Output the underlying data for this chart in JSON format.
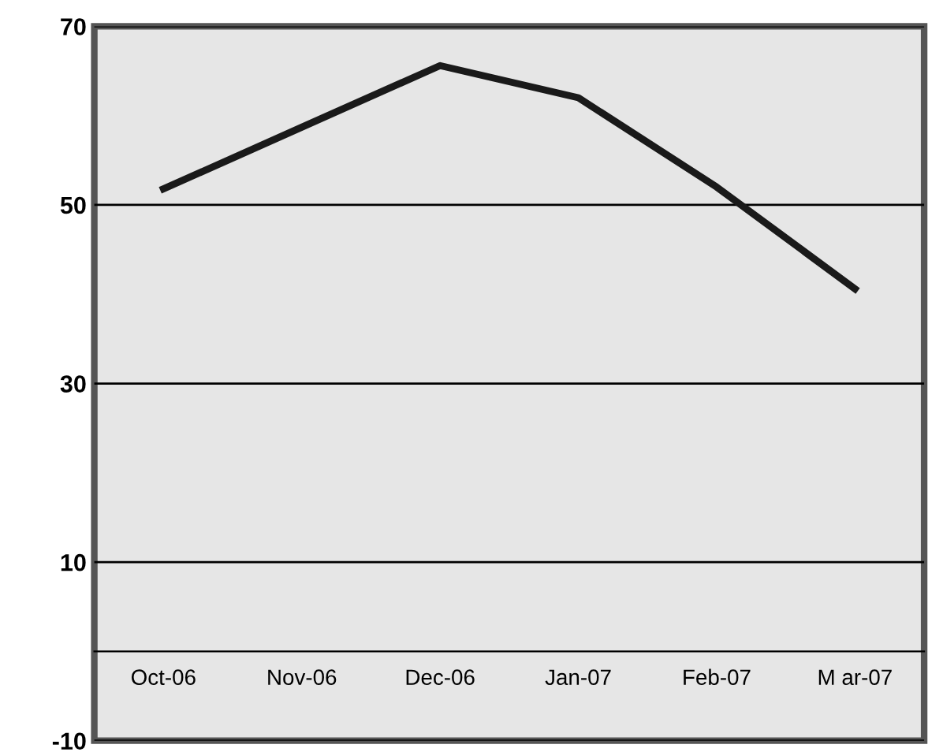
{
  "chart_data": {
    "type": "line",
    "categories": [
      "Oct-06",
      "Nov-06",
      "Dec-06",
      "Jan-07",
      "Feb-07",
      "M ar-07"
    ],
    "series": [
      {
        "color": "#1a1a1a",
        "values": [
          51.8,
          58.7,
          65.6,
          62,
          52,
          40.6
        ]
      }
    ],
    "ylim": [
      -10,
      70
    ],
    "yticks": [
      -10,
      10,
      30,
      50,
      70
    ],
    "grid": "y",
    "legend": false,
    "marker": "none",
    "line_style": "solid"
  }
}
